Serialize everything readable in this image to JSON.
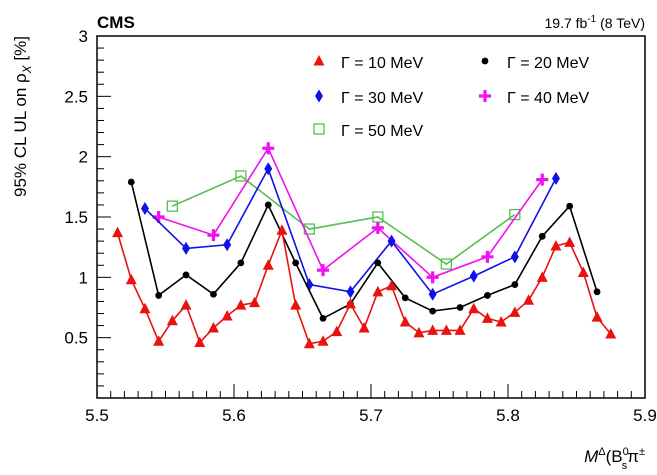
{
  "header": {
    "experiment": "CMS",
    "lumi": "19.7 fb",
    "lumi_sup": "-1",
    "energy": " (8 TeV)"
  },
  "chart_data": {
    "type": "scatter",
    "xlabel_parts": [
      "M",
      "Δ",
      "(B",
      "0",
      "s",
      "π",
      "±",
      ") [GeV]"
    ],
    "ylabel": "95% CL UL on ρ",
    "ylabel_sub": "X",
    "ylabel_unit": " [%]",
    "xlim": [
      5.5,
      5.9
    ],
    "ylim": [
      0,
      3
    ],
    "xticks": [
      "5.5",
      "5.6",
      "5.7",
      "5.8",
      "5.9"
    ],
    "yticks": [
      "0.5",
      "1",
      "1.5",
      "2",
      "2.5",
      "3"
    ],
    "series": [
      {
        "name": "Γ = 10 MeV",
        "color": "#e8120f",
        "marker": "triangle",
        "x": [
          5.515,
          5.525,
          5.535,
          5.545,
          5.555,
          5.565,
          5.575,
          5.585,
          5.595,
          5.605,
          5.615,
          5.625,
          5.635,
          5.645,
          5.655,
          5.665,
          5.675,
          5.685,
          5.695,
          5.705,
          5.715,
          5.725,
          5.735,
          5.745,
          5.755,
          5.765,
          5.775,
          5.785,
          5.795,
          5.805,
          5.815,
          5.825,
          5.835,
          5.845,
          5.855,
          5.865,
          5.875
        ],
        "y": [
          1.37,
          0.98,
          0.74,
          0.47,
          0.64,
          0.77,
          0.46,
          0.58,
          0.68,
          0.77,
          0.79,
          1.1,
          1.39,
          0.77,
          0.45,
          0.47,
          0.55,
          0.78,
          0.58,
          0.88,
          0.93,
          0.63,
          0.54,
          0.56,
          0.56,
          0.56,
          0.74,
          0.66,
          0.63,
          0.71,
          0.81,
          1.0,
          1.26,
          1.29,
          1.04,
          0.67,
          0.53
        ]
      },
      {
        "name": "Γ = 20 MeV",
        "color": "#000000",
        "marker": "circle",
        "x": [
          5.525,
          5.545,
          5.565,
          5.585,
          5.605,
          5.625,
          5.645,
          5.665,
          5.685,
          5.705,
          5.725,
          5.745,
          5.765,
          5.785,
          5.805,
          5.825,
          5.845,
          5.865
        ],
        "y": [
          1.79,
          0.85,
          1.02,
          0.86,
          1.12,
          1.6,
          1.12,
          0.66,
          0.78,
          1.12,
          0.83,
          0.72,
          0.75,
          0.85,
          0.94,
          1.34,
          1.59,
          0.88
        ]
      },
      {
        "name": "Γ = 30 MeV",
        "color": "#1010e8",
        "marker": "diamond",
        "x": [
          5.535,
          5.565,
          5.595,
          5.625,
          5.655,
          5.685,
          5.715,
          5.745,
          5.775,
          5.805,
          5.835
        ],
        "y": [
          1.57,
          1.24,
          1.27,
          1.9,
          0.94,
          0.88,
          1.3,
          0.86,
          1.01,
          1.17,
          1.82
        ]
      },
      {
        "name": "Γ = 40 MeV",
        "color": "#f010f0",
        "marker": "cross",
        "x": [
          5.545,
          5.585,
          5.625,
          5.665,
          5.705,
          5.745,
          5.785,
          5.825
        ],
        "y": [
          1.5,
          1.35,
          2.07,
          1.06,
          1.41,
          1.0,
          1.17,
          1.81
        ]
      },
      {
        "name": "Γ = 50 MeV",
        "color": "#55c050",
        "marker": "square-open",
        "x": [
          5.555,
          5.605,
          5.655,
          5.705,
          5.755,
          5.805
        ],
        "y": [
          1.59,
          1.84,
          1.4,
          1.5,
          1.11,
          1.52
        ]
      }
    ],
    "legend_position": "top-right"
  }
}
